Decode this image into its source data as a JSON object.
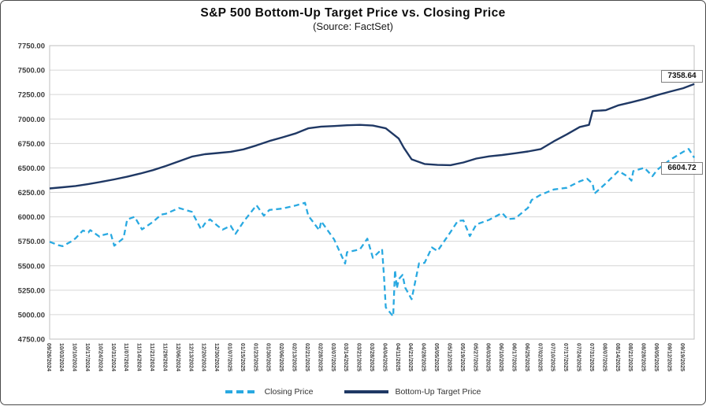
{
  "chart": {
    "title": "S&P 500 Bottom-Up Target Price vs. Closing Price",
    "subtitle": "(Source: FactSet)",
    "end_labels": {
      "target": "7358.64",
      "closing": "6604.72"
    }
  },
  "legend": {
    "closing": "Closing Price",
    "target": "Bottom-Up Target Price"
  },
  "colors": {
    "closing_line": "#29A9E1",
    "target_line": "#1F3864",
    "gridline": "#D6D6D6",
    "plot_border": "#BFBFBF",
    "axis_text": "#3b3b3b"
  },
  "chart_data": {
    "type": "line",
    "title": "S&P 500 Bottom-Up Target Price vs. Closing Price",
    "subtitle": "(Source: FactSet)",
    "grid": true,
    "legend_position": "bottom",
    "y_axis": {
      "min": 4750,
      "max": 7750,
      "step": 250,
      "tick_labels": [
        "7750.00",
        "7500.00",
        "7250.00",
        "7000.00",
        "6750.00",
        "6500.00",
        "6250.00",
        "6000.00",
        "5750.00",
        "5500.00",
        "5250.00",
        "5000.00",
        "4750.00"
      ]
    },
    "x_tick_labels": [
      "09/26/2024",
      "10/03/2024",
      "10/10/2024",
      "10/17/2024",
      "10/24/2024",
      "10/31/2024",
      "11/07/2024",
      "11/14/2024",
      "11/21/2024",
      "11/29/2024",
      "12/06/2024",
      "12/13/2024",
      "12/20/2024",
      "12/30/2024",
      "01/07/2025",
      "01/15/2025",
      "01/23/2025",
      "01/30/2025",
      "02/06/2025",
      "02/13/2025",
      "02/21/2025",
      "02/28/2025",
      "03/07/2025",
      "03/14/2025",
      "03/21/2025",
      "03/28/2025",
      "04/04/2025",
      "04/11/2025",
      "04/21/2025",
      "04/28/2025",
      "05/05/2025",
      "05/12/2025",
      "05/19/2025",
      "05/27/2025",
      "06/03/2025",
      "06/10/2025",
      "06/17/2025",
      "06/25/2025",
      "07/02/2025",
      "07/10/2025",
      "07/17/2025",
      "07/24/2025",
      "07/31/2025",
      "08/07/2025",
      "08/14/2025",
      "08/21/2025",
      "08/28/2025",
      "09/05/2025",
      "09/12/2025",
      "09/19/2025"
    ],
    "series": [
      {
        "name": "Closing Price",
        "style": "dashed",
        "color": "#29A9E1",
        "points": [
          [
            "09/26/2024",
            5745
          ],
          [
            "10/01/2024",
            5709
          ],
          [
            "10/03/2024",
            5700
          ],
          [
            "10/08/2024",
            5751
          ],
          [
            "10/10/2024",
            5780
          ],
          [
            "10/14/2024",
            5860
          ],
          [
            "10/17/2024",
            5841
          ],
          [
            "10/18/2024",
            5865
          ],
          [
            "10/23/2024",
            5797
          ],
          [
            "10/24/2024",
            5810
          ],
          [
            "10/29/2024",
            5833
          ],
          [
            "10/31/2024",
            5705
          ],
          [
            "11/05/2024",
            5783
          ],
          [
            "11/07/2024",
            5973
          ],
          [
            "11/11/2024",
            6001
          ],
          [
            "11/15/2024",
            5871
          ],
          [
            "11/21/2024",
            5949
          ],
          [
            "11/26/2024",
            6022
          ],
          [
            "11/29/2024",
            6032
          ],
          [
            "12/06/2024",
            6090
          ],
          [
            "12/13/2024",
            6051
          ],
          [
            "12/18/2024",
            5872
          ],
          [
            "12/20/2024",
            5931
          ],
          [
            "12/24/2024",
            5974
          ],
          [
            "12/30/2024",
            5907
          ],
          [
            "01/02/2025",
            5869
          ],
          [
            "01/07/2025",
            5909
          ],
          [
            "01/10/2025",
            5827
          ],
          [
            "01/15/2025",
            5950
          ],
          [
            "01/23/2025",
            6119
          ],
          [
            "01/27/2025",
            6012
          ],
          [
            "01/30/2025",
            6071
          ],
          [
            "02/06/2025",
            6084
          ],
          [
            "02/13/2025",
            6115
          ],
          [
            "02/19/2025",
            6144
          ],
          [
            "02/21/2025",
            6013
          ],
          [
            "02/27/2025",
            5862
          ],
          [
            "02/28/2025",
            5955
          ],
          [
            "03/07/2025",
            5770
          ],
          [
            "03/13/2025",
            5522
          ],
          [
            "03/14/2025",
            5639
          ],
          [
            "03/21/2025",
            5668
          ],
          [
            "03/25/2025",
            5777
          ],
          [
            "03/28/2025",
            5581
          ],
          [
            "04/02/2025",
            5671
          ],
          [
            "04/03/2025",
            5397
          ],
          [
            "04/04/2025",
            5074
          ],
          [
            "04/08/2025",
            4983
          ],
          [
            "04/09/2025",
            5457
          ],
          [
            "04/10/2025",
            5268
          ],
          [
            "04/11/2025",
            5363
          ],
          [
            "04/14/2025",
            5406
          ],
          [
            "04/16/2025",
            5276
          ],
          [
            "04/21/2025",
            5158
          ],
          [
            "04/25/2025",
            5525
          ],
          [
            "04/28/2025",
            5529
          ],
          [
            "05/02/2025",
            5687
          ],
          [
            "05/05/2025",
            5650
          ],
          [
            "05/12/2025",
            5844
          ],
          [
            "05/16/2025",
            5958
          ],
          [
            "05/19/2025",
            5964
          ],
          [
            "05/23/2025",
            5803
          ],
          [
            "05/27/2025",
            5922
          ],
          [
            "06/03/2025",
            5970
          ],
          [
            "06/10/2025",
            6039
          ],
          [
            "06/13/2025",
            5977
          ],
          [
            "06/17/2025",
            5983
          ],
          [
            "06/25/2025",
            6092
          ],
          [
            "06/27/2025",
            6173
          ],
          [
            "07/02/2025",
            6227
          ],
          [
            "07/10/2025",
            6280
          ],
          [
            "07/17/2025",
            6297
          ],
          [
            "07/24/2025",
            6363
          ],
          [
            "07/28/2025",
            6390
          ],
          [
            "07/31/2025",
            6339
          ],
          [
            "08/01/2025",
            6238
          ],
          [
            "08/07/2025",
            6340
          ],
          [
            "08/14/2025",
            6469
          ],
          [
            "08/19/2025",
            6411
          ],
          [
            "08/21/2025",
            6370
          ],
          [
            "08/22/2025",
            6467
          ],
          [
            "08/28/2025",
            6502
          ],
          [
            "09/02/2025",
            6416
          ],
          [
            "09/05/2025",
            6482
          ],
          [
            "09/12/2025",
            6584
          ],
          [
            "09/19/2025",
            6664
          ],
          [
            "09/22/2025",
            6694
          ],
          [
            "09/25/2025",
            6604.72
          ]
        ]
      },
      {
        "name": "Bottom-Up Target Price",
        "style": "solid",
        "color": "#1F3864",
        "points": [
          [
            "09/26/2024",
            6290
          ],
          [
            "10/03/2024",
            6302
          ],
          [
            "10/10/2024",
            6315
          ],
          [
            "10/17/2024",
            6335
          ],
          [
            "10/24/2024",
            6358
          ],
          [
            "10/31/2024",
            6383
          ],
          [
            "11/07/2024",
            6410
          ],
          [
            "11/14/2024",
            6442
          ],
          [
            "11/21/2024",
            6478
          ],
          [
            "11/29/2024",
            6520
          ],
          [
            "12/06/2024",
            6568
          ],
          [
            "12/13/2024",
            6615
          ],
          [
            "12/20/2024",
            6640
          ],
          [
            "12/30/2024",
            6652
          ],
          [
            "01/07/2025",
            6665
          ],
          [
            "01/15/2025",
            6690
          ],
          [
            "01/23/2025",
            6730
          ],
          [
            "01/30/2025",
            6775
          ],
          [
            "02/06/2025",
            6812
          ],
          [
            "02/13/2025",
            6852
          ],
          [
            "02/21/2025",
            6905
          ],
          [
            "02/28/2025",
            6922
          ],
          [
            "03/07/2025",
            6928
          ],
          [
            "03/14/2025",
            6936
          ],
          [
            "03/21/2025",
            6940
          ],
          [
            "03/28/2025",
            6933
          ],
          [
            "04/04/2025",
            6905
          ],
          [
            "04/11/2025",
            6800
          ],
          [
            "04/15/2025",
            6705
          ],
          [
            "04/21/2025",
            6588
          ],
          [
            "04/28/2025",
            6540
          ],
          [
            "05/05/2025",
            6531
          ],
          [
            "05/12/2025",
            6528
          ],
          [
            "05/19/2025",
            6556
          ],
          [
            "05/27/2025",
            6596
          ],
          [
            "06/03/2025",
            6618
          ],
          [
            "06/10/2025",
            6632
          ],
          [
            "06/17/2025",
            6650
          ],
          [
            "06/25/2025",
            6668
          ],
          [
            "07/02/2025",
            6693
          ],
          [
            "07/10/2025",
            6772
          ],
          [
            "07/17/2025",
            6843
          ],
          [
            "07/24/2025",
            6918
          ],
          [
            "07/29/2025",
            6940
          ],
          [
            "07/31/2025",
            7082
          ],
          [
            "08/07/2025",
            7090
          ],
          [
            "08/14/2025",
            7140
          ],
          [
            "08/21/2025",
            7172
          ],
          [
            "08/28/2025",
            7205
          ],
          [
            "09/05/2025",
            7245
          ],
          [
            "09/12/2025",
            7280
          ],
          [
            "09/19/2025",
            7315
          ],
          [
            "09/25/2025",
            7358.64
          ]
        ]
      }
    ],
    "end_value_labels": [
      {
        "series": "Bottom-Up Target Price",
        "text": "7358.64"
      },
      {
        "series": "Closing Price",
        "text": "6604.72"
      }
    ]
  }
}
